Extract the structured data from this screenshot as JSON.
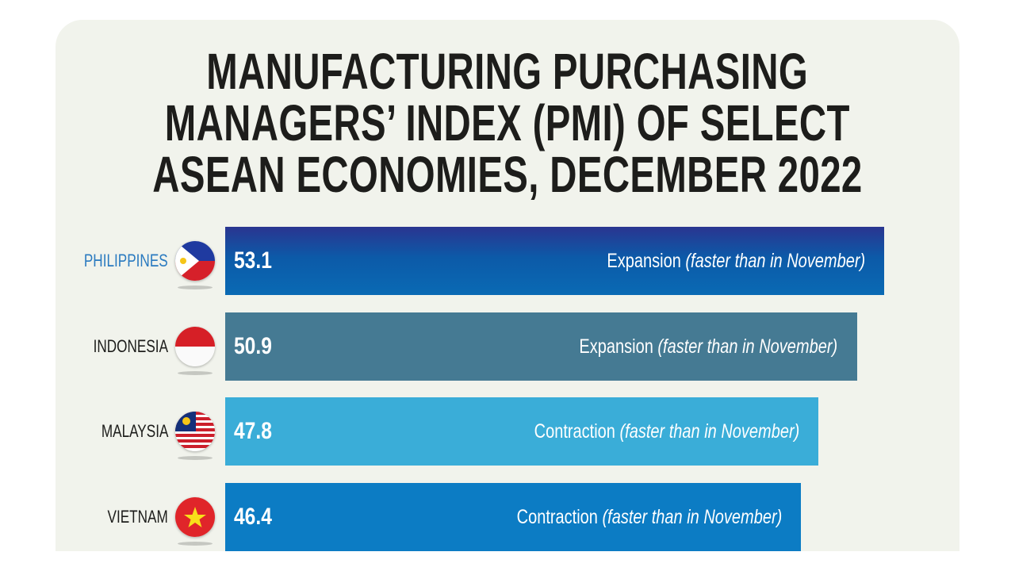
{
  "chart_data": {
    "type": "bar",
    "orientation": "horizontal",
    "title": "MANUFACTURING PURCHASING MANAGERS’ INDEX (PMI) OF SELECT ASEAN ECONOMIES, DECEMBER 2022",
    "title_lines": [
      "MANUFACTURING PURCHASING",
      "MANAGERS’ INDEX (PMI) OF SELECT",
      "ASEAN ECONOMIES, DECEMBER 2022"
    ],
    "categories": [
      "PHILIPPINES",
      "INDONESIA",
      "MALAYSIA",
      "VIETNAM"
    ],
    "values": [
      53.1,
      50.9,
      47.8,
      46.4
    ],
    "value_labels": [
      "53.1",
      "50.9",
      "47.8",
      "46.4"
    ],
    "notes": [
      {
        "status": "Expansion",
        "detail": "(faster than in November)"
      },
      {
        "status": "Expansion",
        "detail": "(faster than in November)"
      },
      {
        "status": "Contraction",
        "detail": "(faster than in November)"
      },
      {
        "status": "Contraction",
        "detail": "(faster than in November)"
      }
    ],
    "flags": [
      "philippines-flag",
      "indonesia-flag",
      "malaysia-flag",
      "vietnam-flag"
    ],
    "colors": [
      "#1f4f9f",
      "#457a93",
      "#3aadd8",
      "#0c7cc4"
    ],
    "highlight_label_color": "#2a7ac0",
    "xlim": [
      0,
      53.1
    ],
    "grid": false,
    "legend": "none"
  }
}
